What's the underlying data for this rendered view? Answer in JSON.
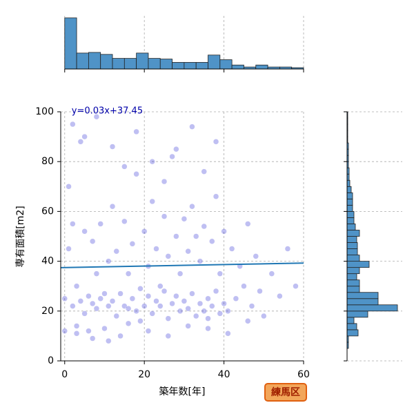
{
  "chart_data": [
    {
      "type": "scatter",
      "xlabel": "築年数[年]",
      "ylabel": "専有面積[m2]",
      "x": [
        0,
        0,
        1,
        1,
        2,
        2,
        3,
        3,
        4,
        4,
        5,
        5,
        6,
        6,
        7,
        7,
        8,
        8,
        9,
        9,
        10,
        10,
        11,
        11,
        12,
        12,
        13,
        13,
        14,
        14,
        15,
        15,
        16,
        16,
        17,
        17,
        18,
        18,
        19,
        19,
        20,
        20,
        21,
        21,
        22,
        22,
        23,
        23,
        24,
        24,
        25,
        25,
        26,
        26,
        27,
        27,
        28,
        28,
        29,
        29,
        30,
        30,
        31,
        31,
        32,
        32,
        33,
        33,
        34,
        34,
        35,
        35,
        36,
        36,
        37,
        37,
        38,
        38,
        39,
        39,
        40,
        40,
        41,
        42,
        43,
        44,
        45,
        46,
        47,
        48,
        49,
        50,
        52,
        54,
        56,
        58,
        2,
        5,
        8,
        12,
        15,
        18,
        22,
        25,
        28,
        32,
        35,
        38,
        3,
        7,
        11,
        16,
        21,
        26,
        31,
        36,
        41,
        46
      ],
      "y": [
        12,
        25,
        45,
        70,
        22,
        55,
        30,
        14,
        24,
        88,
        52,
        19,
        26,
        12,
        48,
        23,
        21,
        35,
        55,
        25,
        13,
        27,
        40,
        22,
        24,
        62,
        18,
        44,
        27,
        10,
        22,
        56,
        35,
        21,
        25,
        47,
        20,
        75,
        29,
        16,
        22,
        52,
        26,
        38,
        19,
        64,
        24,
        45,
        22,
        30,
        28,
        58,
        17,
        42,
        23,
        82,
        26,
        50,
        20,
        35,
        24,
        57,
        21,
        44,
        27,
        62,
        18,
        50,
        23,
        40,
        20,
        54,
        25,
        17,
        22,
        48,
        28,
        66,
        19,
        35,
        23,
        52,
        20,
        45,
        25,
        38,
        30,
        55,
        22,
        42,
        28,
        18,
        35,
        26,
        45,
        30,
        95,
        90,
        98,
        86,
        78,
        92,
        80,
        72,
        85,
        94,
        76,
        88,
        11,
        9,
        8,
        15,
        12,
        10,
        14,
        13,
        11,
        16
      ],
      "color": "#0000cc",
      "xlim": [
        -1,
        60
      ],
      "ylim": [
        0,
        100
      ],
      "xticks": [
        0,
        20,
        40,
        60
      ],
      "yticks": [
        0,
        20,
        40,
        60,
        80,
        100
      ],
      "grid": true,
      "regression": {
        "label": "y=0.03x+37.45",
        "x": [
          -1,
          60
        ],
        "y": [
          37.42,
          39.25
        ],
        "color": "#1f77b4"
      },
      "annotation": "練馬区"
    },
    {
      "type": "histogram",
      "orientation": "vertical",
      "color": "#4f93c7",
      "bins": [
        0,
        3,
        6,
        9,
        12,
        15,
        18,
        21,
        24,
        27,
        30,
        33,
        36,
        39,
        42,
        45,
        48,
        51,
        54,
        57,
        60
      ],
      "counts": [
        770,
        240,
        250,
        220,
        160,
        160,
        240,
        160,
        150,
        100,
        100,
        100,
        210,
        140,
        60,
        30,
        60,
        30,
        30,
        20
      ],
      "ylim": [
        0,
        800
      ]
    },
    {
      "type": "histogram",
      "orientation": "horizontal",
      "color": "#4f93c7",
      "bins": [
        5,
        7.5,
        10,
        12.5,
        15,
        17.5,
        20,
        22.5,
        25,
        27.5,
        30,
        32.5,
        35,
        37.5,
        40,
        42.5,
        45,
        47.5,
        50,
        52.5,
        55,
        57.5,
        60,
        62.5,
        65,
        67.5,
        70,
        72.5,
        75,
        77.5,
        80,
        82.5,
        85,
        87.5,
        90,
        92.5,
        95,
        97.5,
        100
      ],
      "counts": [
        2,
        2,
        16,
        14,
        10,
        30,
        73,
        45,
        45,
        18,
        18,
        14,
        18,
        32,
        18,
        15,
        15,
        14,
        18,
        12,
        10,
        10,
        8,
        8,
        8,
        6,
        4,
        3,
        3,
        2,
        2,
        2,
        2,
        1,
        1,
        1,
        1,
        1
      ],
      "xlim": [
        0,
        80
      ]
    }
  ]
}
